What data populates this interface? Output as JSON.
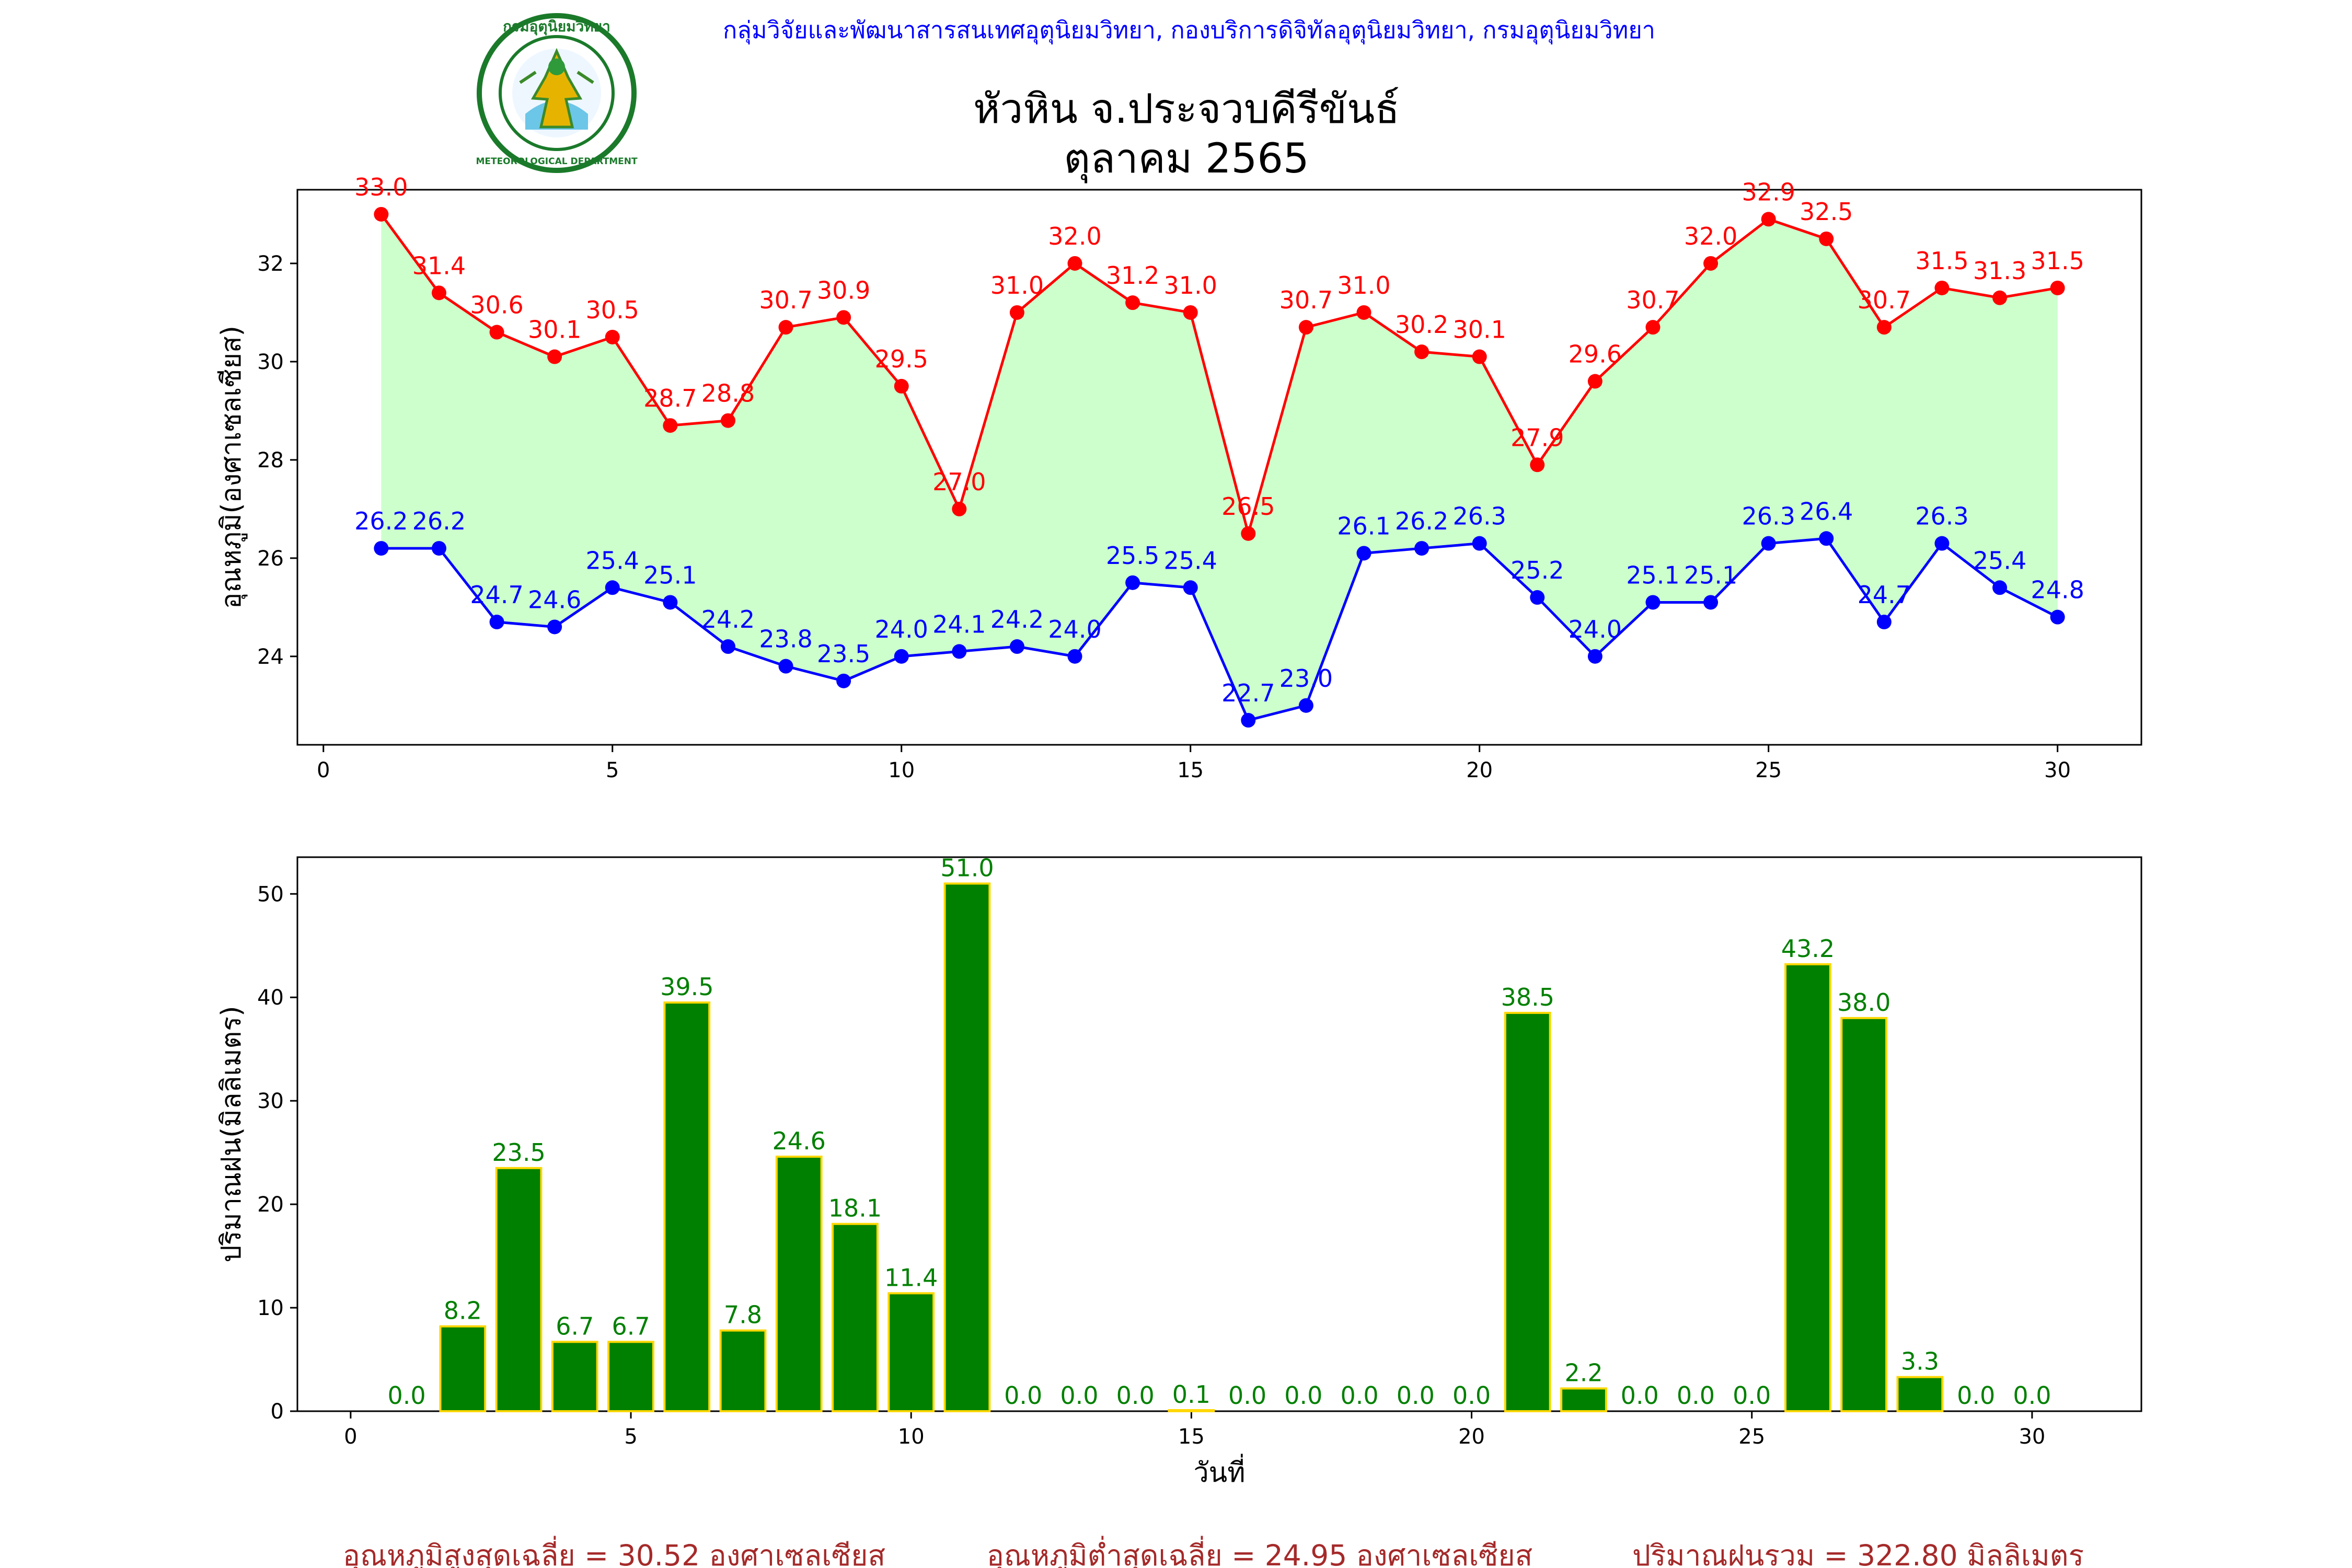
{
  "header": {
    "agency_line": "กลุ่มวิจัยและพัฒนาสารสนเทศอุตุนิยมวิทยา, กองบริการดิจิทัลอุตุนิยมวิทยา, กรมอุตุนิยมวิทยา",
    "title_line1": "หัวหิน จ.ประจวบคีรีขันธ์",
    "title_line2": "ตุลาคม 2565",
    "logo_text_top": "กรมอุตุนิยมวิทยา",
    "logo_text_bottom": "METEOROLOGICAL DEPARTMENT"
  },
  "colors": {
    "max_series": "#ff0000",
    "min_series": "#0000ff",
    "band_fill": "#ccffcc",
    "rain_bar": "#008000",
    "rain_edge": "#ffd700",
    "agency_text": "#0000ff",
    "footer_text": "#a52a2a"
  },
  "chart_data": [
    {
      "type": "line",
      "ylabel": "อุณหภูมิ(องศาเซลเซียส)",
      "xlabel": "",
      "x": [
        1,
        2,
        3,
        4,
        5,
        6,
        7,
        8,
        9,
        10,
        11,
        12,
        13,
        14,
        15,
        16,
        17,
        18,
        19,
        20,
        21,
        22,
        23,
        24,
        25,
        26,
        27,
        28,
        29,
        30
      ],
      "xlim": [
        -0.45,
        31.45
      ],
      "ylim": [
        22.2,
        33.5
      ],
      "xticks": [
        0,
        5,
        10,
        15,
        20,
        25,
        30
      ],
      "yticks": [
        24,
        26,
        28,
        30,
        32
      ],
      "fill_between": true,
      "series": [
        {
          "key": "max",
          "values": [
            33.0,
            31.4,
            30.6,
            30.1,
            30.5,
            28.7,
            28.8,
            30.7,
            30.9,
            29.5,
            27.0,
            31.0,
            32.0,
            31.2,
            31.0,
            26.5,
            30.7,
            31.0,
            30.2,
            30.1,
            27.9,
            29.6,
            30.7,
            32.0,
            32.9,
            32.5,
            30.7,
            31.5,
            31.3,
            31.5
          ]
        },
        {
          "key": "min",
          "values": [
            26.2,
            26.2,
            24.7,
            24.6,
            25.4,
            25.1,
            24.2,
            23.8,
            23.5,
            24.0,
            24.1,
            24.2,
            24.0,
            25.5,
            25.4,
            22.7,
            23.0,
            26.1,
            26.2,
            26.3,
            25.2,
            24.0,
            25.1,
            25.1,
            26.3,
            26.4,
            24.7,
            26.3,
            25.4,
            24.8
          ]
        }
      ]
    },
    {
      "type": "bar",
      "ylabel": "ปริมาณฝน(มิลลิเมตร)",
      "xlabel": "วันที่",
      "x": [
        1,
        2,
        3,
        4,
        5,
        6,
        7,
        8,
        9,
        10,
        11,
        12,
        13,
        14,
        15,
        16,
        17,
        18,
        19,
        20,
        21,
        22,
        23,
        24,
        25,
        26,
        27,
        28,
        29,
        30
      ],
      "xlim": [
        -0.95,
        31.95
      ],
      "ylim": [
        0,
        53.55
      ],
      "xticks": [
        0,
        5,
        10,
        15,
        20,
        25,
        30
      ],
      "yticks": [
        0,
        10,
        20,
        30,
        40,
        50
      ],
      "values": [
        0.0,
        8.2,
        23.5,
        6.7,
        6.7,
        39.5,
        7.8,
        24.6,
        18.1,
        11.4,
        51.0,
        0.0,
        0.0,
        0.0,
        0.1,
        0.0,
        0.0,
        0.0,
        0.0,
        0.0,
        38.5,
        2.2,
        0.0,
        0.0,
        0.0,
        43.2,
        38.0,
        3.3,
        0.0,
        0.0
      ]
    }
  ],
  "footer": {
    "avg_max": "อุณหภูมิสูงสุดเฉลี่ย = 30.52 องศาเซลเซียส",
    "avg_min": "อุณหภูมิต่ำสุดเฉลี่ย = 24.95 องศาเซลเซียส",
    "total_rain": "ปริมาณฝนรวม = 322.80 มิลลิเมตร"
  }
}
